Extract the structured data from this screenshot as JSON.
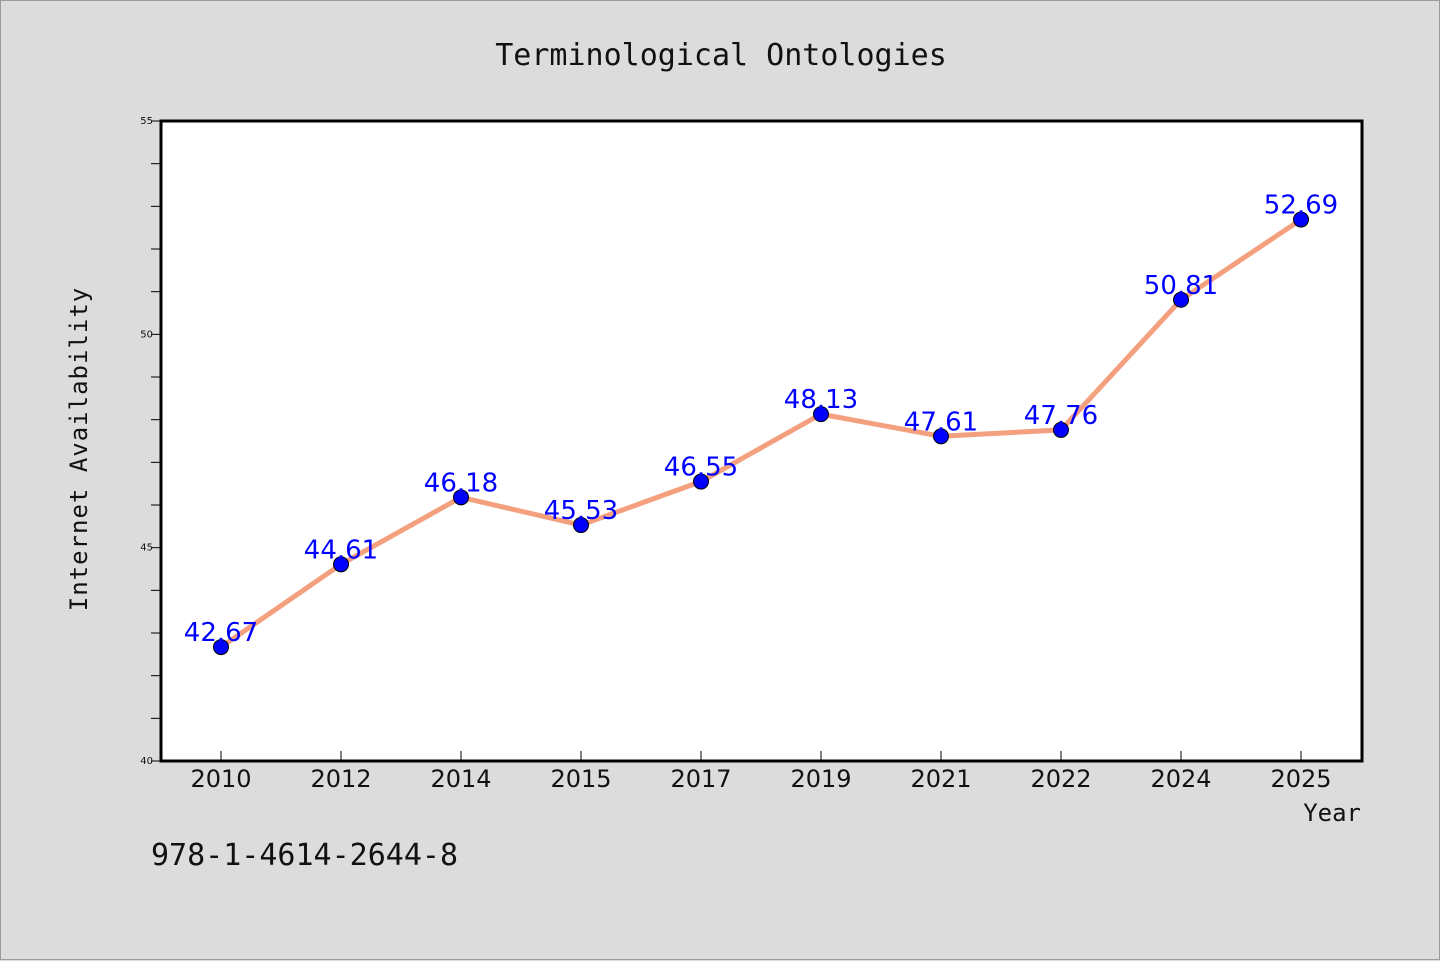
{
  "chart_data": {
    "type": "line",
    "title": "Terminological Ontologies",
    "xlabel": "Year",
    "ylabel": "Internet Availability",
    "categories": [
      "2010",
      "2012",
      "2014",
      "2015",
      "2017",
      "2019",
      "2021",
      "2022",
      "2024",
      "2025"
    ],
    "series": [
      {
        "values": [
          42.67,
          44.61,
          46.18,
          45.53,
          46.55,
          48.13,
          47.61,
          47.76,
          50.81,
          52.69
        ],
        "labels": [
          "42.67",
          "44.61",
          "46.18",
          "45.53",
          "46.55",
          "48.13",
          "47.61",
          "47.76",
          "50.81",
          "52.69"
        ],
        "line_color": "#f4a07f",
        "marker_color": "#0000ff"
      }
    ],
    "ylim": [
      40,
      55
    ],
    "yticks": [
      "40",
      "45",
      "50",
      "55"
    ],
    "grid": false,
    "legend": false
  },
  "footer_text": "978-1-4614-2644-8"
}
